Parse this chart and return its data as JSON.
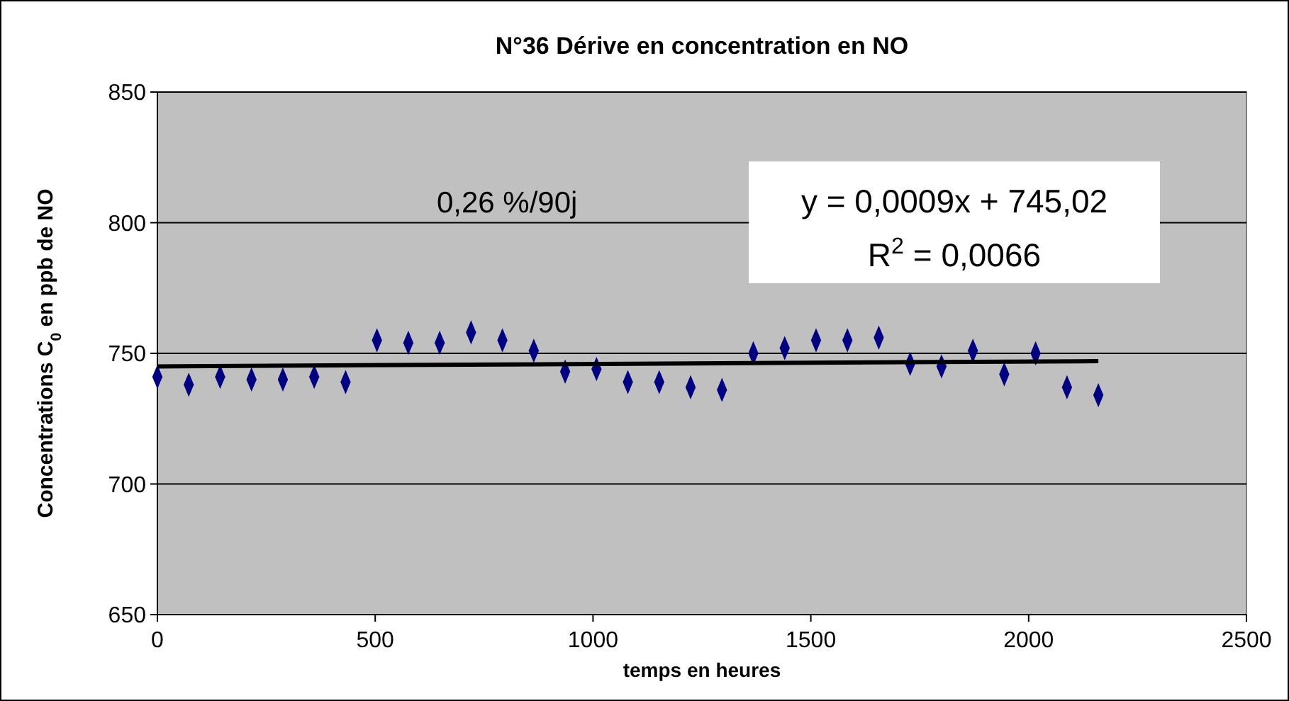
{
  "chart_data": {
    "type": "scatter",
    "title": "N°36 Dérive en concentration en NO",
    "xlabel": "temps en heures",
    "ylabel": "Concentrations C$_{0}$ en ppb de NO",
    "annotations": [
      "0,26 %/90j",
      "y = 0,0009x + 745,02",
      "R$^{2}$ = 0,0066"
    ],
    "series": [
      {
        "color": "#000080",
        "marker": "diamond",
        "x": [
          0,
          72,
          144,
          216,
          288,
          360,
          432,
          504,
          576,
          648,
          720,
          792,
          864,
          936,
          1008,
          1080,
          1152,
          1224,
          1296,
          1368,
          1440,
          1512,
          1584,
          1656,
          1728,
          1800,
          1872,
          1944,
          2016,
          2088,
          2160
        ],
        "values": [
          741,
          738,
          741,
          740,
          740,
          741,
          739,
          755,
          754,
          754,
          758,
          755,
          751,
          743,
          744,
          739,
          739,
          737,
          736,
          750,
          752,
          755,
          755,
          756,
          746,
          745,
          751,
          742,
          750,
          737,
          734
        ]
      },
      {
        "type": "line",
        "color": "#000000",
        "x": [
          0,
          2160
        ],
        "values": [
          745,
          747
        ]
      }
    ],
    "xlim": [
      0,
      2500
    ],
    "xticks": [
      0,
      500,
      1000,
      1500,
      2000,
      2500
    ],
    "ylim": [
      650,
      850
    ],
    "yticks": [
      650,
      700,
      750,
      800,
      850
    ],
    "grid": "y"
  }
}
